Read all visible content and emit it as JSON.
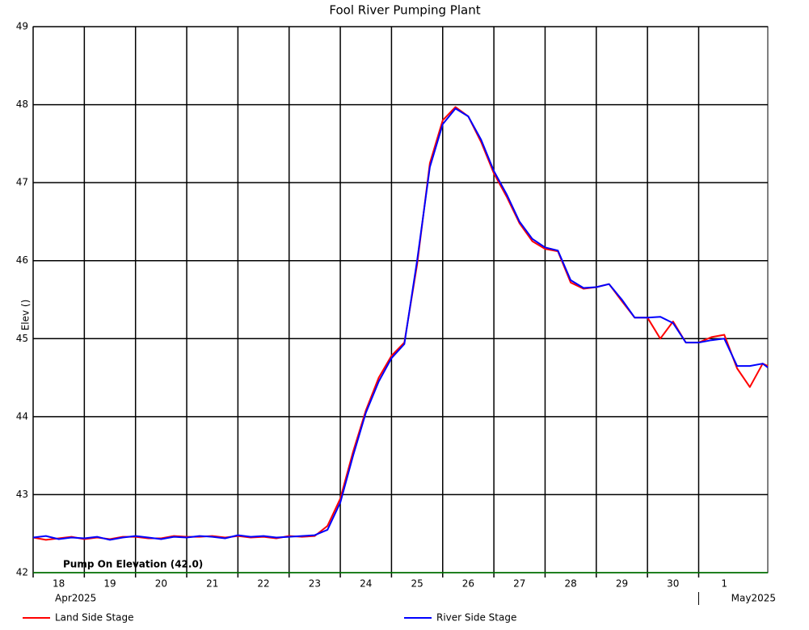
{
  "chart_data": {
    "type": "line",
    "title": "Fool River Pumping Plant",
    "y_label": "Elev ()",
    "x": [
      0,
      0.25,
      0.5,
      0.75,
      1,
      1.25,
      1.5,
      1.75,
      2,
      2.25,
      2.5,
      2.75,
      3,
      3.25,
      3.5,
      3.75,
      4,
      4.25,
      4.5,
      4.75,
      5,
      5.25,
      5.5,
      5.75,
      6,
      6.25,
      6.5,
      6.75,
      7,
      7.25,
      7.5,
      7.75,
      8,
      8.25,
      8.5,
      8.75,
      9,
      9.25,
      9.5,
      9.75,
      10,
      10.25,
      10.5,
      10.75,
      11,
      11.25,
      11.5,
      11.75,
      12,
      12.25,
      12.5,
      12.75,
      13,
      13.25,
      13.5,
      13.75,
      14,
      14.25,
      14.35
    ],
    "series": [
      {
        "name": "Land Side Stage",
        "color": "#ff0000",
        "values": [
          42.45,
          42.42,
          42.44,
          42.46,
          42.43,
          42.45,
          42.43,
          42.46,
          42.46,
          42.44,
          42.44,
          42.47,
          42.46,
          42.46,
          42.47,
          42.45,
          42.47,
          42.45,
          42.46,
          42.44,
          42.47,
          42.46,
          42.47,
          42.6,
          42.95,
          43.55,
          44.08,
          44.5,
          44.78,
          44.95,
          45.95,
          47.25,
          47.8,
          47.97,
          47.85,
          47.52,
          47.12,
          46.82,
          46.48,
          46.25,
          46.15,
          46.12,
          45.72,
          45.64,
          45.66,
          45.7,
          45.48,
          45.27,
          45.27,
          45.0,
          45.22,
          44.95,
          44.95,
          45.02,
          45.05,
          44.62,
          44.38,
          44.68,
          44.65
        ]
      },
      {
        "name": "River Side Stage",
        "color": "#0000ff",
        "values": [
          42.45,
          42.47,
          42.43,
          42.45,
          42.44,
          42.46,
          42.42,
          42.45,
          42.47,
          42.45,
          42.43,
          42.46,
          42.45,
          42.47,
          42.46,
          42.44,
          42.48,
          42.46,
          42.47,
          42.45,
          42.46,
          42.47,
          42.48,
          42.55,
          42.9,
          43.5,
          44.05,
          44.45,
          44.75,
          44.93,
          46.0,
          47.2,
          47.75,
          47.95,
          47.85,
          47.55,
          47.15,
          46.85,
          46.5,
          46.28,
          46.17,
          46.13,
          45.75,
          45.65,
          45.66,
          45.7,
          45.5,
          45.27,
          45.27,
          45.28,
          45.2,
          44.95,
          44.95,
          44.98,
          45.0,
          44.65,
          44.65,
          44.68,
          44.63
        ]
      }
    ],
    "threshold": {
      "label": "Pump On Elevation (42.0)",
      "value": 42,
      "color": "#008000"
    },
    "xlim": [
      0,
      14.35
    ],
    "xticks": [
      {
        "value": 0,
        "label": "18"
      },
      {
        "value": 1,
        "label": "19"
      },
      {
        "value": 2,
        "label": "20"
      },
      {
        "value": 3,
        "label": "21"
      },
      {
        "value": 4,
        "label": "22"
      },
      {
        "value": 5,
        "label": "23"
      },
      {
        "value": 6,
        "label": "24"
      },
      {
        "value": 7,
        "label": "25"
      },
      {
        "value": 8,
        "label": "26"
      },
      {
        "value": 9,
        "label": "27"
      },
      {
        "value": 10,
        "label": "28"
      },
      {
        "value": 11,
        "label": "29"
      },
      {
        "value": 12,
        "label": "30"
      },
      {
        "value": 13,
        "label": "1"
      }
    ],
    "month_labels": [
      {
        "value": 0,
        "label": "Apr2025"
      },
      {
        "value": 13,
        "label": "May2025"
      }
    ],
    "ylim": [
      42,
      49
    ],
    "yticks": [
      42,
      43,
      44,
      45,
      46,
      47,
      48,
      49
    ],
    "grid": true
  }
}
